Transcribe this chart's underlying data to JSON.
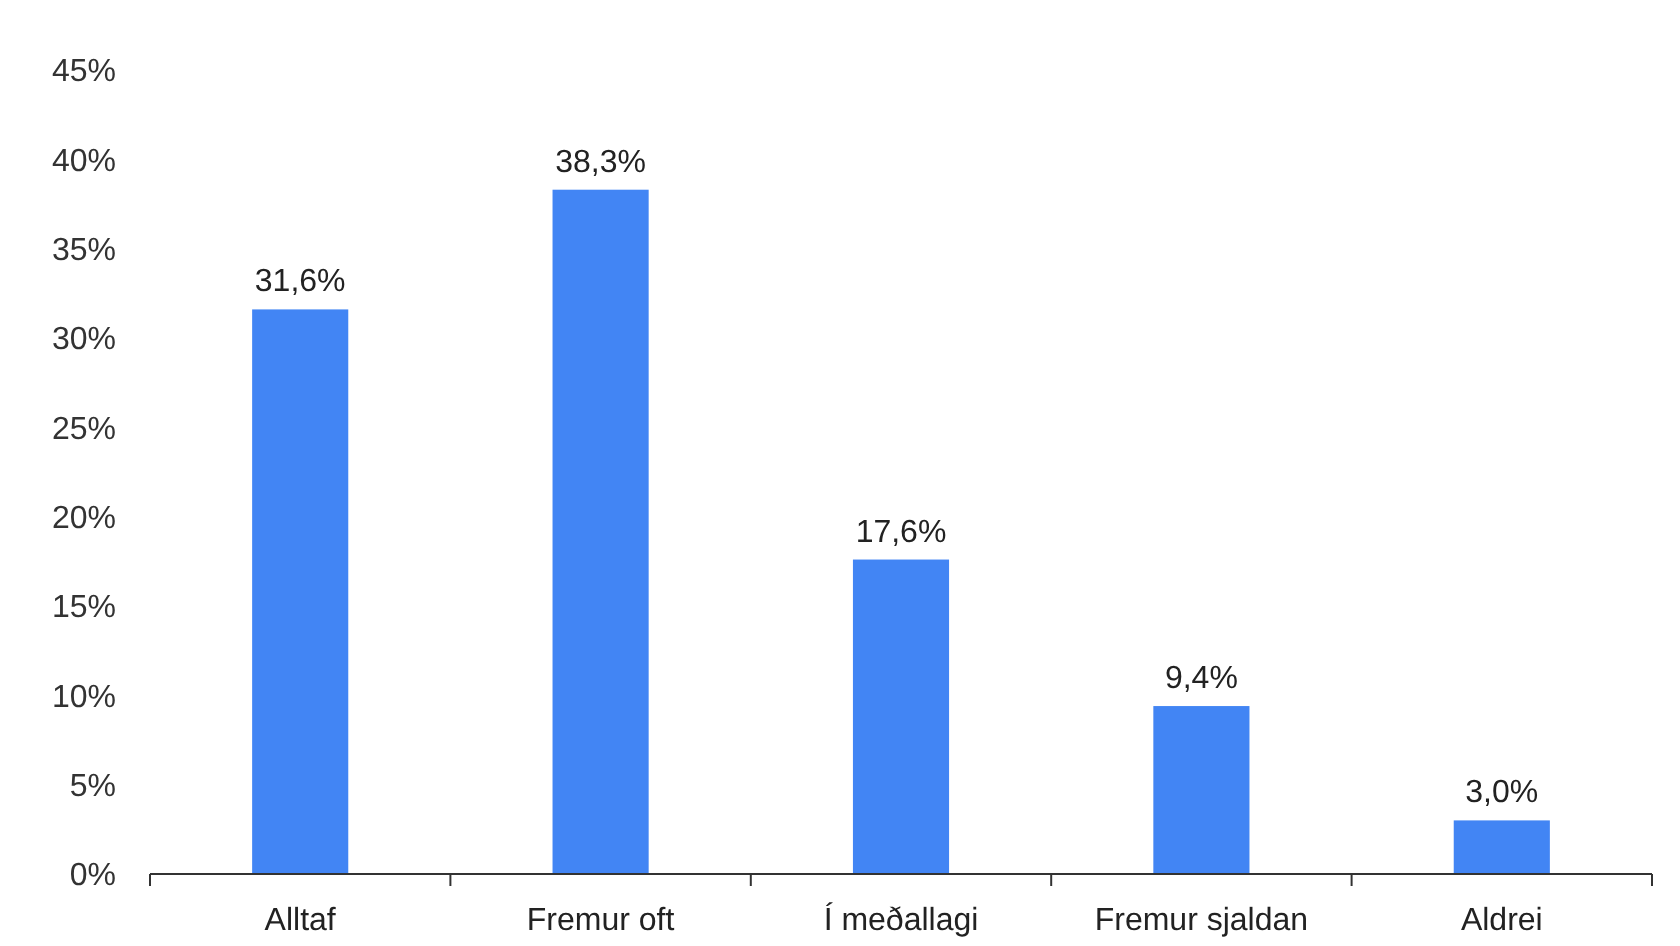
{
  "chart_data": {
    "type": "bar",
    "categories": [
      "Alltaf",
      "Fremur oft",
      "Í meðallagi",
      "Fremur sjaldan",
      "Aldrei"
    ],
    "values": [
      31.6,
      38.3,
      17.6,
      9.4,
      3.0
    ],
    "value_labels": [
      "31,6%",
      "38,3%",
      "17,6%",
      "9,4%",
      "3,0%"
    ],
    "color": "#4285f4",
    "ylim": [
      0,
      45
    ],
    "yticks": [
      {
        "value": 0,
        "label": "0%"
      },
      {
        "value": 5,
        "label": "5%"
      },
      {
        "value": 10,
        "label": "10%"
      },
      {
        "value": 15,
        "label": "15%"
      },
      {
        "value": 20,
        "label": "20%"
      },
      {
        "value": 25,
        "label": "25%"
      },
      {
        "value": 30,
        "label": "30%"
      },
      {
        "value": 35,
        "label": "35%"
      },
      {
        "value": 40,
        "label": "40%"
      },
      {
        "value": 45,
        "label": "45%"
      }
    ],
    "grid": false
  }
}
